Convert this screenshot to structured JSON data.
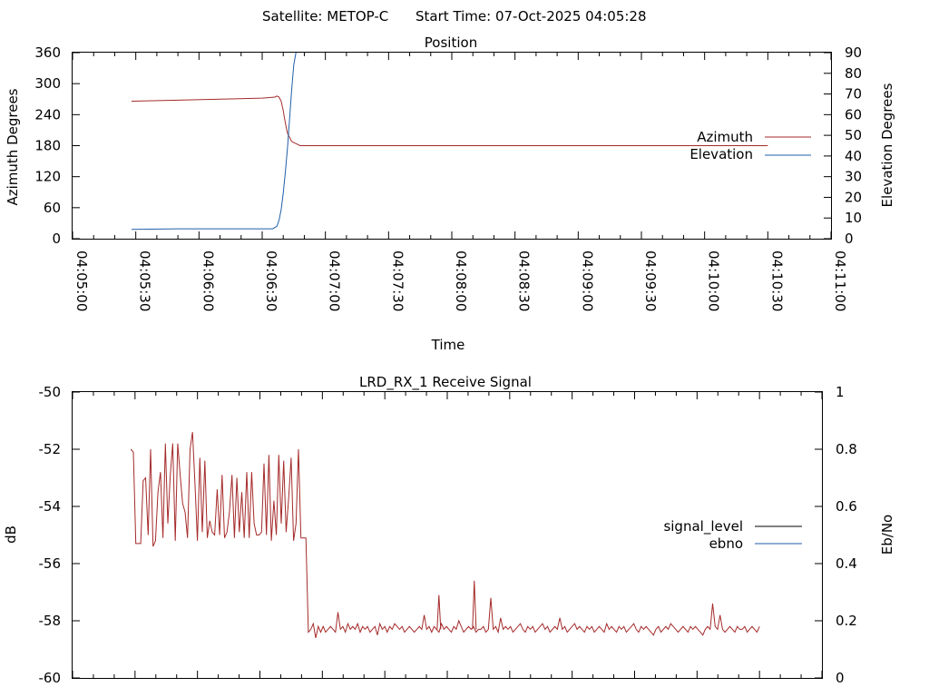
{
  "header": {
    "satellite_label": "Satellite: METOP-C",
    "start_time_label": "Start Time: 07-Oct-2025 04:05:28"
  },
  "chart_data": [
    {
      "type": "line",
      "title": "Position",
      "xlabel": "Time",
      "ylabel": "Azimuth Degrees",
      "y2label": "Elevation Degrees",
      "x_tick_labels": [
        "04:05:00",
        "04:05:30",
        "04:06:00",
        "04:06:30",
        "04:07:00",
        "04:07:30",
        "04:08:00",
        "04:08:30",
        "04:09:00",
        "04:09:30",
        "04:10:00",
        "04:10:30",
        "04:11:00"
      ],
      "xlim_seconds": [
        0,
        360
      ],
      "ylim": [
        0,
        360
      ],
      "y_ticks": [
        0,
        60,
        120,
        180,
        240,
        300,
        360
      ],
      "y2lim": [
        0,
        90
      ],
      "y2_ticks": [
        0,
        10,
        20,
        30,
        40,
        50,
        60,
        70,
        80,
        90
      ],
      "legend_position": "right",
      "colors": {
        "Azimuth": "#a52a2a",
        "Elevation": "#1f5fa8"
      },
      "series": [
        {
          "name": "Azimuth",
          "axis": "left",
          "x": [
            28,
            50,
            70,
            90,
            96,
            97,
            98,
            99,
            100,
            101,
            102,
            104,
            108,
            120,
            200,
            330
          ],
          "y": [
            266,
            268,
            270,
            272,
            274,
            276,
            274,
            266,
            248,
            224,
            204,
            188,
            180,
            180,
            180,
            180
          ]
        },
        {
          "name": "Elevation",
          "axis": "right",
          "x": [
            28,
            50,
            70,
            90,
            95,
            97,
            98,
            99,
            100,
            101,
            102,
            103,
            104,
            105,
            106
          ],
          "y": [
            4.5,
            4.8,
            4.8,
            4.8,
            4.8,
            6,
            9,
            14,
            22,
            32,
            44,
            58,
            72,
            84,
            90
          ]
        }
      ]
    },
    {
      "type": "line",
      "title": "LRD_RX_1 Receive Signal",
      "xlabel": "",
      "ylabel": "dB",
      "y2label": "Eb/No",
      "ylim": [
        -60,
        -50
      ],
      "y_ticks": [
        -60,
        -58,
        -56,
        -54,
        -52,
        -50
      ],
      "y2lim": [
        0,
        1
      ],
      "y2_ticks": [
        0,
        0.2,
        0.4,
        0.6,
        0.8,
        1
      ],
      "xlim_seconds": [
        0,
        360
      ],
      "legend_position": "right",
      "colors": {
        "signal_level": "#000000",
        "ebno": "#1f5fa8",
        "trace": "#a52a2a"
      },
      "series": [
        {
          "name": "signal_level",
          "values": []
        },
        {
          "name": "ebno",
          "values": []
        }
      ],
      "trace": {
        "x_start": 28,
        "x_end": 330,
        "values": [
          -52.0,
          -52.1,
          -55.3,
          -55.3,
          -55.3,
          -53.1,
          -53.0,
          -55.0,
          -52.0,
          -55.4,
          -55.2,
          -53.5,
          -52.8,
          -55.1,
          -51.8,
          -54.6,
          -52.9,
          -51.8,
          -55.2,
          -51.8,
          -52.9,
          -53.9,
          -54.2,
          -55.1,
          -52.0,
          -51.4,
          -53.2,
          -55.2,
          -52.3,
          -54.9,
          -52.4,
          -55.1,
          -54.5,
          -54.9,
          -55.0,
          -53.4,
          -55.0,
          -52.9,
          -55.1,
          -54.9,
          -54.2,
          -52.9,
          -55.1,
          -53.0,
          -54.9,
          -53.5,
          -55.1,
          -52.8,
          -55.1,
          -52.8,
          -54.6,
          -55.0,
          -55.0,
          -54.9,
          -52.5,
          -55.0,
          -52.2,
          -55.2,
          -53.8,
          -55.0,
          -52.2,
          -54.6,
          -52.4,
          -54.9,
          -53.7,
          -52.3,
          -55.2,
          -54.6,
          -52.0,
          -55.1,
          -55.1,
          -55.1,
          -58.4,
          -58.3,
          -58.1,
          -58.6,
          -58.2,
          -58.4,
          -58.2,
          -58.4,
          -58.3,
          -58.2,
          -58.3,
          -58.4,
          -57.7,
          -58.3,
          -58.2,
          -58.4,
          -58.1,
          -58.3,
          -58.2,
          -58.3,
          -58.1,
          -58.4,
          -58.2,
          -58.3,
          -58.2,
          -58.4,
          -58.3,
          -58.2,
          -58.5,
          -58.1,
          -58.3,
          -58.2,
          -58.4,
          -58.2,
          -58.3,
          -58.1,
          -58.2,
          -58.3,
          -58.2,
          -58.4,
          -58.3,
          -58.2,
          -58.3,
          -58.4,
          -58.3,
          -58.2,
          -58.3,
          -57.8,
          -58.3,
          -58.2,
          -58.4,
          -58.2,
          -58.3,
          -58.4,
          -58.1,
          -58.3,
          -58.2,
          -58.3,
          -58.4,
          -58.2,
          -58.3,
          -58.0,
          -58.2,
          -58.4,
          -58.3,
          -58.2,
          -58.3,
          -58.2,
          -58.4,
          -58.3,
          -58.3,
          -58.2,
          -58.4,
          -58.3,
          -57.2,
          -58.3,
          -58.2,
          -58.4,
          -57.9,
          -58.3,
          -58.2,
          -58.3,
          -58.2,
          -58.4,
          -58.3,
          -58.2,
          -58.1,
          -58.3,
          -58.4,
          -58.2,
          -58.3,
          -58.2,
          -58.4,
          -58.3,
          -58.2,
          -58.1,
          -58.3,
          -58.2,
          -58.4,
          -58.3,
          -58.2,
          -58.3,
          -57.9,
          -58.3,
          -58.2,
          -58.4,
          -58.3,
          -58.2,
          -58.1,
          -58.3,
          -58.2,
          -58.3,
          -58.4,
          -58.2,
          -58.3,
          -58.2,
          -58.4,
          -58.3,
          -58.2,
          -58.3,
          -58.4,
          -58.1,
          -58.3,
          -58.2,
          -58.3,
          -58.4,
          -58.2,
          -58.3,
          -58.2,
          -58.4,
          -58.3,
          -58.2,
          -58.1,
          -58.3,
          -58.4,
          -58.2,
          -58.3,
          -58.2,
          -58.3,
          -58.4,
          -58.5,
          -58.3,
          -58.2,
          -58.4,
          -58.3,
          -58.2,
          -58.3,
          -58.1,
          -58.2,
          -58.3,
          -58.4,
          -58.3,
          -58.2,
          -58.3,
          -58.4,
          -58.2,
          -58.3,
          -58.2,
          -58.3,
          -58.4,
          -58.5,
          -58.3,
          -58.2,
          -58.3,
          -57.4,
          -58.2,
          -58.3,
          -57.8,
          -58.3,
          -58.4,
          -58.3,
          -58.2,
          -58.3,
          -58.4,
          -58.2,
          -58.3,
          -58.3,
          -58.2,
          -58.4,
          -58.3,
          -58.2,
          -58.3,
          -58.4,
          -58.2
        ]
      },
      "trace_spikes": [
        {
          "x_seconds": 176,
          "y": -57.1
        },
        {
          "x_seconds": 193,
          "y": -56.6
        }
      ]
    }
  ]
}
